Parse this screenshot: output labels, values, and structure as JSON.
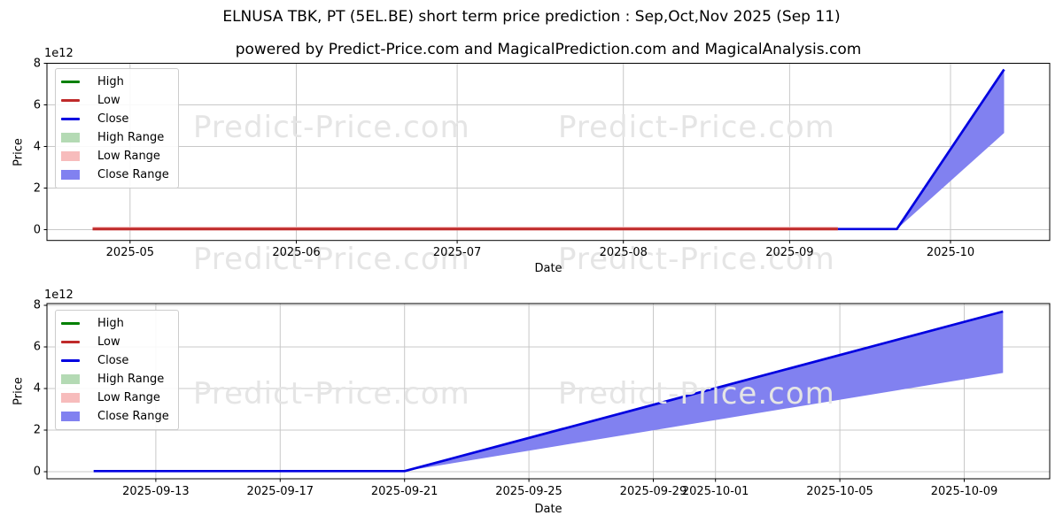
{
  "title": "ELNUSA TBK, PT (5EL.BE) short term price prediction : Sep,Oct,Nov 2025 (Sep 11)",
  "subtitle": "powered by Predict-Price.com and MagicalPrediction.com and MagicalAnalysis.com",
  "watermark": {
    "text": "Predict-Price.com",
    "color": "#e5e5e5"
  },
  "colors": {
    "high": "#008000",
    "low": "#bf2a2a",
    "close": "#0000e0",
    "high_range": "#b4dab4",
    "low_range": "#f7bcbc",
    "close_range": "#8181f0",
    "grid": "#c8c8c8",
    "axis": "#000000",
    "text": "#000000"
  },
  "legend": {
    "items": [
      {
        "label": "High",
        "type": "line",
        "color_key": "high"
      },
      {
        "label": "Low",
        "type": "line",
        "color_key": "low"
      },
      {
        "label": "Close",
        "type": "line",
        "color_key": "close"
      },
      {
        "label": "High Range",
        "type": "patch",
        "color_key": "high_range"
      },
      {
        "label": "Low Range",
        "type": "patch",
        "color_key": "low_range"
      },
      {
        "label": "Close Range",
        "type": "patch",
        "color_key": "close_range"
      }
    ]
  },
  "chart_data": [
    {
      "id": "overview",
      "type": "line",
      "title": "",
      "x_axis": {
        "label": "Date",
        "range": [
          "2025-04-15 12:00",
          "2025-10-19 12:00"
        ],
        "ticks": [
          {
            "date": "2025-05-01",
            "label": "2025-05"
          },
          {
            "date": "2025-06-01",
            "label": "2025-06"
          },
          {
            "date": "2025-07-01",
            "label": "2025-07"
          },
          {
            "date": "2025-08-01",
            "label": "2025-08"
          },
          {
            "date": "2025-09-01",
            "label": "2025-09"
          },
          {
            "date": "2025-10-01",
            "label": "2025-10"
          }
        ]
      },
      "y_axis": {
        "label": "Price",
        "offset_text": "1e12",
        "unit": 1000000000000,
        "ticks": [
          0,
          2,
          4,
          6,
          8
        ],
        "range": [
          -0.5,
          8.0
        ]
      },
      "bands": [
        {
          "name": "Low Range",
          "color_key": "low_range",
          "upper": [
            [
              "2025-04-24",
              0.14
            ],
            [
              "2025-09-10",
              0.14
            ]
          ],
          "lower": [
            [
              "2025-04-24",
              -0.04
            ],
            [
              "2025-09-10",
              -0.04
            ]
          ]
        },
        {
          "name": "Close Range",
          "color_key": "close_range",
          "upper": [
            [
              "2025-09-21",
              0.03
            ],
            [
              "2025-10-11",
              7.7
            ]
          ],
          "lower": [
            [
              "2025-09-21",
              0.03
            ],
            [
              "2025-10-11",
              4.65
            ]
          ]
        }
      ],
      "series": [
        {
          "name": "Low",
          "color_key": "low",
          "width": 3,
          "points": [
            [
              "2025-04-24",
              0.03
            ],
            [
              "2025-09-10",
              0.03
            ]
          ]
        },
        {
          "name": "Close",
          "color_key": "close",
          "width": 2.7,
          "points": [
            [
              "2025-09-10",
              0.03
            ],
            [
              "2025-09-21",
              0.03
            ],
            [
              "2025-10-11",
              7.7
            ]
          ]
        }
      ]
    },
    {
      "id": "detail",
      "type": "line",
      "title": "",
      "x_axis": {
        "label": "Date",
        "range": [
          "2025-09-09 12:00",
          "2025-10-11 18:00"
        ],
        "ticks": [
          {
            "date": "2025-09-13",
            "label": "2025-09-13"
          },
          {
            "date": "2025-09-17",
            "label": "2025-09-17"
          },
          {
            "date": "2025-09-21",
            "label": "2025-09-21"
          },
          {
            "date": "2025-09-25",
            "label": "2025-09-25"
          },
          {
            "date": "2025-09-29",
            "label": "2025-09-29"
          },
          {
            "date": "2025-10-01",
            "label": "2025-10-01"
          },
          {
            "date": "2025-10-05",
            "label": "2025-10-05"
          },
          {
            "date": "2025-10-09",
            "label": "2025-10-09"
          }
        ]
      },
      "y_axis": {
        "label": "Price",
        "offset_text": "1e12",
        "unit": 1000000000000,
        "ticks": [
          0,
          2,
          4,
          6,
          8
        ],
        "range": [
          -0.35,
          8.1
        ]
      },
      "bands": [
        {
          "name": "Close Range",
          "color_key": "close_range",
          "upper": [
            [
              "2025-09-21",
              0.03
            ],
            [
              "2025-10-10 06:00",
              7.7
            ]
          ],
          "lower": [
            [
              "2025-09-21",
              0.03
            ],
            [
              "2025-10-10 06:00",
              4.75
            ]
          ]
        }
      ],
      "series": [
        {
          "name": "Close",
          "color_key": "close",
          "width": 2.7,
          "points": [
            [
              "2025-09-11",
              0.03
            ],
            [
              "2025-09-21",
              0.03
            ],
            [
              "2025-10-10 06:00",
              7.7
            ]
          ]
        }
      ]
    }
  ]
}
